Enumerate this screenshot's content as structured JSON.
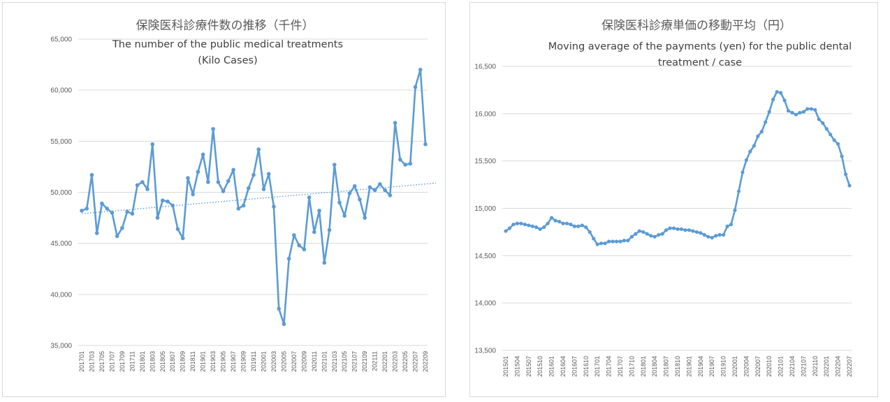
{
  "chart_data": [
    {
      "type": "line",
      "title": "保険医科診療件数の推移（千件）",
      "subtitle_lines": [
        "The number of the public medical treatments",
        "(Kilo Cases)"
      ],
      "xlabel": "",
      "ylabel": "",
      "ylim": [
        35000,
        65000
      ],
      "y_ticks": [
        35000,
        40000,
        45000,
        50000,
        55000,
        60000,
        65000
      ],
      "y_tick_labels": [
        "35,000",
        "40,000",
        "45,000",
        "50,000",
        "55,000",
        "60,000",
        "65,000"
      ],
      "x_tick_labels": [
        "201701",
        "201703",
        "201705",
        "201707",
        "201709",
        "201711",
        "201801",
        "201803",
        "201805",
        "201807",
        "201809",
        "201811",
        "201901",
        "201903",
        "201905",
        "201907",
        "201909",
        "201911",
        "202001",
        "202003",
        "202005",
        "202007",
        "202009",
        "202011",
        "202101",
        "202103",
        "202105",
        "202107",
        "202109",
        "202111",
        "202201",
        "202203",
        "202205",
        "202207",
        "202209"
      ],
      "grid": true,
      "legend": "none",
      "color": "#5B9BD5",
      "series": [
        {
          "values": [
            48200,
            48400,
            51700,
            46000,
            48900,
            48400,
            48000,
            45700,
            46500,
            48100,
            47900,
            50700,
            51000,
            50300,
            54700,
            47500,
            49200,
            49100,
            48700,
            46400,
            45500,
            51400,
            49800,
            52000,
            53700,
            51000,
            56200,
            51000,
            50100,
            51100,
            52200,
            48400,
            48700,
            50400,
            51700,
            54200,
            50300,
            51800,
            48600,
            38600,
            37100,
            43500,
            45800,
            44800,
            44400,
            49500,
            46100,
            48200,
            43100,
            46300,
            52700,
            49000,
            47700,
            49900,
            50600,
            49300,
            47500,
            50500,
            50200,
            50800,
            50200,
            49700,
            56800,
            53200,
            52700,
            52800,
            60300,
            62000,
            54700
          ]
        }
      ],
      "trendline": {
        "start": 47900,
        "end": 50900,
        "style": "dotted linear"
      }
    },
    {
      "type": "line",
      "title": "保険医科診療単価の移動平均（円）",
      "subtitle_lines": [
        "Moving average of the payments (yen) for the public dental",
        "treatment / case"
      ],
      "xlabel": "",
      "ylabel": "",
      "ylim": [
        13500,
        16500
      ],
      "y_ticks": [
        13500,
        14000,
        14500,
        15000,
        15500,
        16000,
        16500
      ],
      "y_tick_labels": [
        "13,500",
        "14,000",
        "14,500",
        "15,000",
        "15,500",
        "16,000",
        "16,500"
      ],
      "x_tick_labels": [
        "201501",
        "201504",
        "201507",
        "201510",
        "201601",
        "201604",
        "201607",
        "201610",
        "201701",
        "201704",
        "201707",
        "201710",
        "201801",
        "201804",
        "201807",
        "201810",
        "201901",
        "201904",
        "201907",
        "201910",
        "202001",
        "202004",
        "202007",
        "202010",
        "202101",
        "202104",
        "202107",
        "202110",
        "202201",
        "202204",
        "202207"
      ],
      "grid": true,
      "legend": "none",
      "color": "#5B9BD5",
      "series": [
        {
          "values": [
            14760,
            14790,
            14830,
            14840,
            14840,
            14830,
            14820,
            14810,
            14800,
            14780,
            14800,
            14840,
            14900,
            14870,
            14860,
            14840,
            14840,
            14830,
            14810,
            14810,
            14820,
            14800,
            14750,
            14680,
            14620,
            14630,
            14630,
            14650,
            14650,
            14650,
            14650,
            14660,
            14660,
            14700,
            14730,
            14760,
            14750,
            14730,
            14710,
            14700,
            14720,
            14730,
            14770,
            14790,
            14790,
            14780,
            14780,
            14770,
            14770,
            14760,
            14750,
            14740,
            14720,
            14700,
            14690,
            14710,
            14720,
            14720,
            14810,
            14830,
            14980,
            15180,
            15380,
            15510,
            15600,
            15660,
            15760,
            15810,
            15910,
            16020,
            16150,
            16230,
            16220,
            16140,
            16030,
            16010,
            15990,
            16010,
            16020,
            16050,
            16050,
            16040,
            15940,
            15900,
            15840,
            15780,
            15720,
            15680,
            15550,
            15360,
            15240
          ]
        }
      ]
    }
  ]
}
